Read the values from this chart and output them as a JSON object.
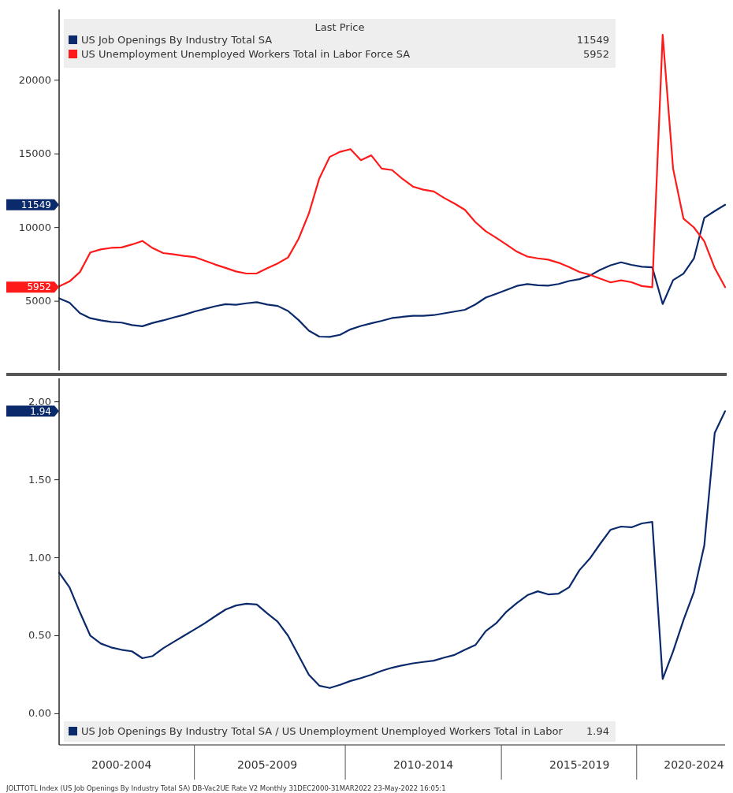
{
  "chart_data": [
    {
      "type": "line",
      "legend_title": "Last Price",
      "legend": "top left",
      "ylim": [
        300,
        24800
      ],
      "categories": [
        null,
        null,
        null,
        null,
        null,
        null,
        null,
        null,
        null,
        null,
        null,
        null,
        null,
        null,
        null,
        null,
        null,
        null,
        null,
        null,
        null,
        null,
        null,
        null,
        null,
        null,
        null,
        null,
        null,
        null,
        null,
        null,
        null,
        null,
        null,
        null,
        null,
        null,
        null,
        null,
        null,
        null,
        null,
        null,
        null,
        null,
        null,
        null,
        null,
        null,
        null,
        null,
        null,
        null,
        null,
        null,
        null,
        null,
        null,
        null,
        null,
        null,
        null,
        null,
        null
      ],
      "yticks": [
        5000,
        10000,
        15000,
        20000
      ],
      "series": [
        {
          "name": "US Job Openings By Industry Total SA",
          "color": "#0b2a6b",
          "values": [
            5200,
            4900,
            4190,
            3850,
            3700,
            3600,
            3550,
            3380,
            3300,
            3530,
            3700,
            3900,
            4080,
            4300,
            4480,
            4660,
            4800,
            4760,
            4860,
            4930,
            4770,
            4680,
            4340,
            3730,
            3000,
            2600,
            2580,
            2720,
            3090,
            3320,
            3500,
            3670,
            3860,
            3940,
            4010,
            4010,
            4060,
            4180,
            4300,
            4420,
            4780,
            5250,
            5500,
            5770,
            6040,
            6160,
            6080,
            6060,
            6170,
            6370,
            6500,
            6740,
            7130,
            7440,
            7640,
            7470,
            7340,
            7300,
            4810,
            6430,
            6870,
            7900,
            10660,
            11120,
            11549
          ]
        },
        {
          "name": "US Unemployment Unemployed Workers Total in Labor Force SA",
          "color": "#ff1a1a",
          "values": [
            6010,
            6340,
            6980,
            8310,
            8520,
            8620,
            8650,
            8850,
            9090,
            8600,
            8270,
            8180,
            8080,
            8000,
            7750,
            7490,
            7260,
            7020,
            6880,
            6890,
            7240,
            7560,
            7970,
            9220,
            10950,
            13330,
            14790,
            15140,
            15320,
            14570,
            14900,
            14000,
            13900,
            13300,
            12780,
            12570,
            12450,
            12010,
            11630,
            11200,
            10370,
            9750,
            9310,
            8840,
            8360,
            8030,
            7910,
            7820,
            7610,
            7320,
            6990,
            6800,
            6530,
            6280,
            6420,
            6290,
            6030,
            5950,
            23080,
            14000,
            10600,
            10010,
            9070,
            7250,
            5952
          ]
        }
      ],
      "annotations": [
        "11549",
        "5952",
        "11549",
        "5952"
      ]
    },
    {
      "type": "line",
      "legend": "bottom left",
      "ylim": [
        -0.2,
        2.15
      ],
      "categories": [
        null,
        null,
        null,
        null,
        null,
        null,
        "2000-2004",
        null,
        null,
        null,
        null,
        null,
        null,
        null,
        null,
        null,
        null,
        null,
        null,
        null,
        "2005-2009",
        null,
        null,
        null,
        null,
        null,
        null,
        null,
        null,
        null,
        null,
        null,
        null,
        null,
        null,
        "2010-2014",
        null,
        null,
        null,
        null,
        null,
        null,
        null,
        null,
        null,
        null,
        null,
        null,
        null,
        null,
        "2015-2019",
        null,
        null,
        null,
        null,
        null,
        null,
        null,
        null,
        null,
        null,
        "2020-2024",
        null,
        null,
        null
      ],
      "yticks": [
        {
          "value": 0,
          "label": "0.00"
        },
        {
          "value": 0.5,
          "label": "0.50"
        },
        {
          "value": 1,
          "label": "1.00"
        },
        {
          "value": 1.5,
          "label": "1.50"
        },
        {
          "value": 2,
          "label": "2.00"
        }
      ],
      "series": [
        {
          "name": "US Job Openings By Industry Total SA / US Unemployment Unemployed Workers Total in Labor",
          "color": "#0b2a6b",
          "values": [
            0.905,
            0.81,
            0.65,
            0.5,
            0.45,
            0.425,
            0.41,
            0.4,
            0.356,
            0.37,
            0.42,
            0.46,
            0.5,
            0.54,
            0.58,
            0.625,
            0.668,
            0.694,
            0.705,
            0.7,
            0.643,
            0.59,
            0.5,
            0.375,
            0.25,
            0.18,
            0.165,
            0.185,
            0.21,
            0.228,
            0.25,
            0.275,
            0.295,
            0.31,
            0.323,
            0.332,
            0.34,
            0.36,
            0.377,
            0.41,
            0.44,
            0.53,
            0.58,
            0.655,
            0.71,
            0.76,
            0.785,
            0.765,
            0.77,
            0.81,
            0.92,
            0.995,
            1.09,
            1.18,
            1.2,
            1.195,
            1.22,
            1.23,
            0.223,
            0.4,
            0.6,
            0.78,
            1.08,
            1.8,
            1.94
          ]
        }
      ],
      "annotations": [
        "1.94",
        "1.94",
        "JOLTTOTL Index (US Job Openings By Industry Total SA) DB-Vac2UE Rate V2  Monthly 31DEC2000-31MAR2022  23-May-2022 16:05:1"
      ]
    }
  ]
}
